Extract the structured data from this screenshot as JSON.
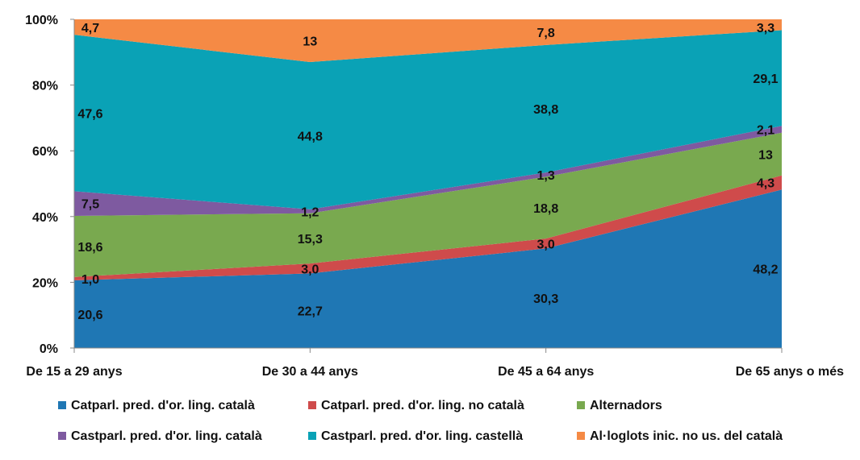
{
  "chart_data": {
    "type": "area",
    "stacked": "percent",
    "categories": [
      "De 15 a 29 anys",
      "De 30 a 44 anys",
      "De 45 a 64 anys",
      "De 65 anys o més"
    ],
    "series": [
      {
        "name": "Catparl.  pred. d'or. ling. català",
        "color": "#1f77b4",
        "values": [
          20.6,
          22.7,
          30.3,
          48.2
        ],
        "labels": [
          "20,6",
          "22,7",
          "30,3",
          "48,2"
        ]
      },
      {
        "name": "Catparl. pred. d'or. ling. no català",
        "color": "#cf4b4b",
        "values": [
          1.0,
          3.0,
          3.0,
          4.3
        ],
        "labels": [
          "1,0",
          "3,0",
          "3,0",
          "4,3"
        ]
      },
      {
        "name": "Alternadors",
        "color": "#79a94f",
        "values": [
          18.6,
          15.3,
          18.8,
          13
        ],
        "labels": [
          "18,6",
          "15,3",
          "18,8",
          "13"
        ]
      },
      {
        "name": "Castparl. pred. d'or. ling. català",
        "color": "#7e5aa0",
        "values": [
          7.5,
          1.2,
          1.3,
          2.1
        ],
        "labels": [
          "7,5",
          "1,2",
          "1,3",
          "2,1"
        ]
      },
      {
        "name": "Castparl. pred. d'or. ling. castellà",
        "color": "#0aa2b6",
        "values": [
          47.6,
          44.8,
          38.8,
          29.1
        ],
        "labels": [
          "47,6",
          "44,8",
          "38,8",
          "29,1"
        ]
      },
      {
        "name": "Al·loglots inic. no us. del català",
        "color": "#f58a45",
        "values": [
          4.7,
          13,
          7.8,
          3.3
        ],
        "labels": [
          "4,7",
          "13",
          "7,8",
          "3,3"
        ]
      }
    ],
    "yticks": [
      "0%",
      "20%",
      "40%",
      "60%",
      "80%",
      "100%"
    ],
    "ylim": [
      0,
      100
    ],
    "title": "",
    "xlabel": "",
    "ylabel": "",
    "legend_position": "bottom"
  }
}
